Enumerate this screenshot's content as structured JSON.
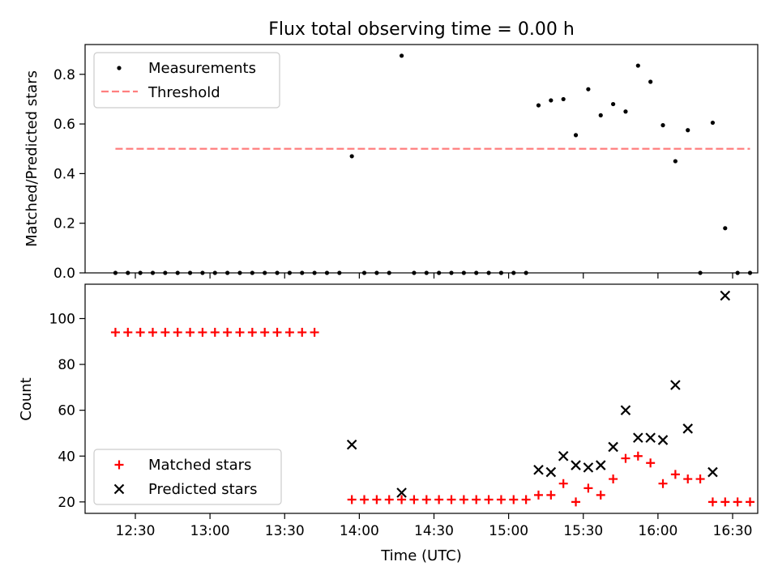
{
  "title": "Flux total observing time = 0.00 h",
  "colors": {
    "measurement": "#000000",
    "threshold": "#ff7f7f",
    "matched": "#ff0000",
    "predicted": "#000000",
    "axes": "#000000"
  },
  "chart_data": [
    {
      "type": "scatter",
      "ylabel": "Matched/Predicted stars",
      "xlim": [
        737,
        990
      ],
      "ylim": [
        0,
        0.92
      ],
      "yticks": [
        0.0,
        0.2,
        0.4,
        0.6,
        0.8
      ],
      "ytick_labels": [
        "0.0",
        "0.2",
        "0.4",
        "0.6",
        "0.8"
      ],
      "legend": {
        "placement": "upper-left",
        "entries": [
          "Measurements",
          "Threshold"
        ]
      },
      "series": [
        {
          "name": "Measurements",
          "marker": "dot",
          "points": [
            [
              742,
              0
            ],
            [
              747,
              0
            ],
            [
              752,
              0
            ],
            [
              757,
              0
            ],
            [
              762,
              0
            ],
            [
              767,
              0
            ],
            [
              772,
              0
            ],
            [
              777,
              0
            ],
            [
              782,
              0
            ],
            [
              787,
              0
            ],
            [
              792,
              0
            ],
            [
              797,
              0
            ],
            [
              802,
              0
            ],
            [
              807,
              0
            ],
            [
              812,
              0
            ],
            [
              817,
              0
            ],
            [
              822,
              0
            ],
            [
              827,
              0
            ],
            [
              832,
              0
            ],
            [
              837,
              0.47
            ],
            [
              842,
              0
            ],
            [
              847,
              0
            ],
            [
              852,
              0
            ],
            [
              857,
              0.875
            ],
            [
              862,
              0
            ],
            [
              867,
              0
            ],
            [
              872,
              0
            ],
            [
              877,
              0
            ],
            [
              882,
              0
            ],
            [
              887,
              0
            ],
            [
              892,
              0
            ],
            [
              897,
              0
            ],
            [
              902,
              0
            ],
            [
              907,
              0
            ],
            [
              912,
              0.675
            ],
            [
              917,
              0.695
            ],
            [
              922,
              0.7
            ],
            [
              927,
              0.555
            ],
            [
              932,
              0.74
            ],
            [
              937,
              0.635
            ],
            [
              942,
              0.68
            ],
            [
              947,
              0.65
            ],
            [
              952,
              0.835
            ],
            [
              957,
              0.77
            ],
            [
              962,
              0.595
            ],
            [
              967,
              0.45
            ],
            [
              972,
              0.575
            ],
            [
              977,
              0
            ],
            [
              982,
              0.605
            ],
            [
              987,
              0.18
            ],
            [
              992,
              0
            ],
            [
              997,
              0
            ]
          ]
        },
        {
          "name": "Threshold",
          "marker": "dashed-line",
          "points": [
            [
              742,
              0.5
            ],
            [
              997,
              0.5
            ]
          ]
        }
      ]
    },
    {
      "type": "scatter",
      "xlabel": "Time (UTC)",
      "ylabel": "Count",
      "xlim": [
        737,
        1008
      ],
      "ylim": [
        15,
        115
      ],
      "yticks": [
        20,
        40,
        60,
        80,
        100
      ],
      "ytick_labels": [
        "20",
        "40",
        "60",
        "80",
        "100"
      ],
      "xticks": [
        750,
        780,
        810,
        840,
        870,
        900,
        930,
        960,
        990
      ],
      "xtick_labels": [
        "12:30",
        "13:00",
        "13:30",
        "14:00",
        "14:30",
        "15:00",
        "15:30",
        "16:00",
        "16:30"
      ],
      "legend": {
        "placement": "lower-left",
        "entries": [
          "Matched stars",
          "Predicted stars"
        ]
      },
      "series": [
        {
          "name": "Matched stars",
          "marker": "plus",
          "points": [
            [
              742,
              94
            ],
            [
              747,
              94
            ],
            [
              752,
              94
            ],
            [
              757,
              94
            ],
            [
              762,
              94
            ],
            [
              767,
              94
            ],
            [
              772,
              94
            ],
            [
              777,
              94
            ],
            [
              782,
              94
            ],
            [
              787,
              94
            ],
            [
              792,
              94
            ],
            [
              797,
              94
            ],
            [
              802,
              94
            ],
            [
              807,
              94
            ],
            [
              812,
              94
            ],
            [
              817,
              94
            ],
            [
              822,
              94
            ],
            [
              837,
              21
            ],
            [
              842,
              21
            ],
            [
              847,
              21
            ],
            [
              852,
              21
            ],
            [
              857,
              21
            ],
            [
              862,
              21
            ],
            [
              867,
              21
            ],
            [
              872,
              21
            ],
            [
              877,
              21
            ],
            [
              882,
              21
            ],
            [
              887,
              21
            ],
            [
              892,
              21
            ],
            [
              897,
              21
            ],
            [
              902,
              21
            ],
            [
              907,
              21
            ],
            [
              912,
              23
            ],
            [
              917,
              23
            ],
            [
              922,
              28
            ],
            [
              927,
              20
            ],
            [
              932,
              26
            ],
            [
              937,
              23
            ],
            [
              942,
              30
            ],
            [
              947,
              39
            ],
            [
              952,
              40
            ],
            [
              957,
              37
            ],
            [
              962,
              28
            ],
            [
              967,
              32
            ],
            [
              972,
              30
            ],
            [
              977,
              30
            ],
            [
              982,
              20
            ],
            [
              987,
              20
            ],
            [
              992,
              20
            ],
            [
              997,
              20
            ]
          ]
        },
        {
          "name": "Predicted stars",
          "marker": "x",
          "points": [
            [
              837,
              45
            ],
            [
              857,
              24
            ],
            [
              912,
              34
            ],
            [
              917,
              33
            ],
            [
              922,
              40
            ],
            [
              927,
              36
            ],
            [
              932,
              35
            ],
            [
              937,
              36
            ],
            [
              942,
              44
            ],
            [
              947,
              60
            ],
            [
              952,
              48
            ],
            [
              957,
              48
            ],
            [
              962,
              47
            ],
            [
              967,
              71
            ],
            [
              972,
              52
            ],
            [
              982,
              33
            ],
            [
              987,
              110
            ]
          ]
        }
      ]
    }
  ]
}
